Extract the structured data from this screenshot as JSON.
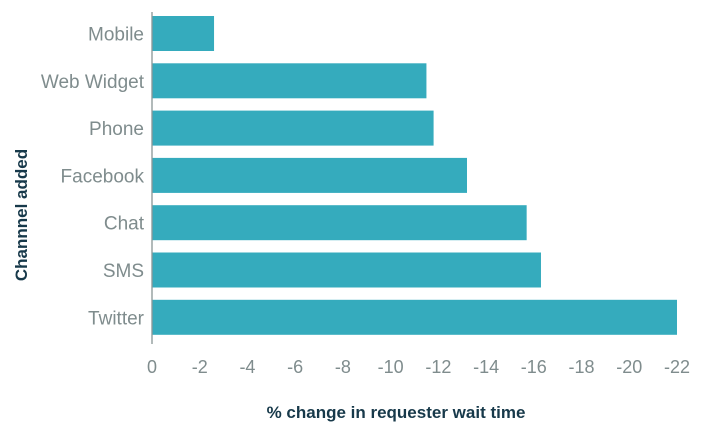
{
  "chart_data": {
    "type": "bar",
    "orientation": "horizontal",
    "categories": [
      "Mobile",
      "Web Widget",
      "Phone",
      "Facebook",
      "Chat",
      "SMS",
      "Twitter"
    ],
    "values": [
      -2.6,
      -11.5,
      -11.8,
      -13.2,
      -15.7,
      -16.3,
      -22.0
    ],
    "xlabel": "% change in requester wait time",
    "ylabel": "Channnel added",
    "xlim": [
      0,
      -22
    ],
    "xticks": [
      0,
      -2,
      -4,
      -6,
      -8,
      -10,
      -12,
      -14,
      -16,
      -18,
      -20,
      -22
    ],
    "xtick_labels": [
      "0",
      "-2",
      "-4",
      "-6",
      "-8",
      "-10",
      "-12",
      "-14",
      "-16",
      "-18",
      "-20",
      "-22"
    ],
    "grid": false,
    "legend": "none",
    "colors": {
      "bar": "#35abbd",
      "axis": "#7f8c8d",
      "label": "#7f8c8d",
      "title": "#17394a"
    }
  }
}
